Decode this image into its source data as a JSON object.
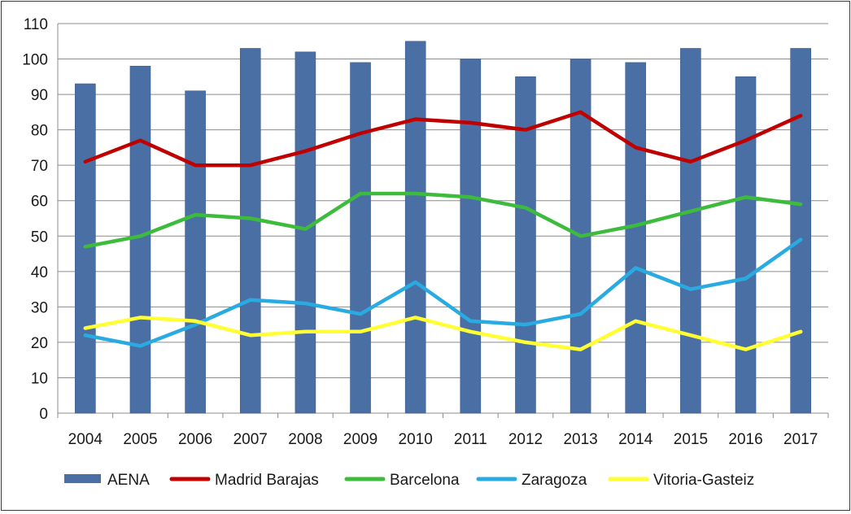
{
  "chart_data": {
    "type": "bar",
    "title": "",
    "xlabel": "",
    "ylabel": "",
    "ylim": [
      0,
      110
    ],
    "yticks": [
      0,
      10,
      20,
      30,
      40,
      50,
      60,
      70,
      80,
      90,
      100,
      110
    ],
    "grid": true,
    "legend_position": "bottom",
    "categories": [
      "2004",
      "2005",
      "2006",
      "2007",
      "2008",
      "2009",
      "2010",
      "2011",
      "2012",
      "2013",
      "2014",
      "2015",
      "2016",
      "2017"
    ],
    "series": [
      {
        "name": "AENA",
        "kind": "bar",
        "color": "#4a6fa5",
        "values": [
          93,
          98,
          91,
          103,
          102,
          99,
          105,
          100,
          95,
          100,
          99,
          103,
          95,
          103
        ]
      },
      {
        "name": "Madrid Barajas",
        "kind": "line",
        "color": "#c00000",
        "values": [
          71,
          77,
          70,
          70,
          74,
          79,
          83,
          82,
          80,
          85,
          75,
          71,
          77,
          84
        ]
      },
      {
        "name": "Barcelona",
        "kind": "line",
        "color": "#3dbb3d",
        "values": [
          47,
          50,
          56,
          55,
          52,
          62,
          62,
          61,
          58,
          50,
          53,
          57,
          61,
          59
        ]
      },
      {
        "name": "Zaragoza",
        "kind": "line",
        "color": "#29abe2",
        "values": [
          22,
          19,
          25,
          32,
          31,
          28,
          37,
          26,
          25,
          28,
          41,
          35,
          38,
          49
        ]
      },
      {
        "name": "Vitoria-Gasteiz",
        "kind": "line",
        "color": "#ffff33",
        "values": [
          24,
          27,
          26,
          22,
          23,
          23,
          27,
          23,
          20,
          18,
          26,
          22,
          18,
          23
        ]
      }
    ]
  }
}
